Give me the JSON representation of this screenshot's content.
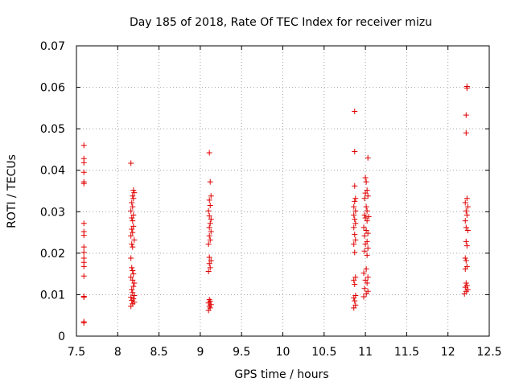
{
  "chart_data": {
    "type": "scatter",
    "title": "Day 185 of 2018, Rate Of TEC Index for receiver mizu",
    "xlabel": "GPS time / hours",
    "ylabel": "ROTI / TECUs",
    "xlim": [
      7.5,
      12.5
    ],
    "ylim": [
      0,
      0.07
    ],
    "x_ticks": [
      "7.5",
      "8",
      "8.5",
      "9",
      "9.5",
      "10",
      "10.5",
      "11",
      "11.5",
      "12",
      "12.5"
    ],
    "y_ticks": [
      "0",
      "0.01",
      "0.02",
      "0.03",
      "0.04",
      "0.05",
      "0.06",
      "0.07"
    ],
    "grid": true,
    "marker": "+",
    "color": "#e00000",
    "series": [
      {
        "name": "ROTI",
        "points": [
          [
            7.59,
            0.0032
          ],
          [
            7.59,
            0.0035
          ],
          [
            7.59,
            0.0094
          ],
          [
            7.59,
            0.0096
          ],
          [
            7.59,
            0.0145
          ],
          [
            7.59,
            0.0168
          ],
          [
            7.59,
            0.0178
          ],
          [
            7.59,
            0.0188
          ],
          [
            7.59,
            0.0202
          ],
          [
            7.59,
            0.0215
          ],
          [
            7.59,
            0.0243
          ],
          [
            7.59,
            0.0252
          ],
          [
            7.59,
            0.0272
          ],
          [
            7.59,
            0.0368
          ],
          [
            7.59,
            0.0372
          ],
          [
            7.59,
            0.0395
          ],
          [
            7.59,
            0.0418
          ],
          [
            7.59,
            0.0428
          ],
          [
            7.59,
            0.046
          ],
          [
            8.16,
            0.0072
          ],
          [
            8.18,
            0.0078
          ],
          [
            8.2,
            0.0082
          ],
          [
            8.17,
            0.0086
          ],
          [
            8.19,
            0.009
          ],
          [
            8.16,
            0.0094
          ],
          [
            8.2,
            0.0098
          ],
          [
            8.18,
            0.0105
          ],
          [
            8.17,
            0.0112
          ],
          [
            8.19,
            0.012
          ],
          [
            8.2,
            0.0128
          ],
          [
            8.18,
            0.0135
          ],
          [
            8.16,
            0.0142
          ],
          [
            8.19,
            0.015
          ],
          [
            8.18,
            0.0158
          ],
          [
            8.17,
            0.0165
          ],
          [
            8.16,
            0.0188
          ],
          [
            8.18,
            0.0215
          ],
          [
            8.17,
            0.0222
          ],
          [
            8.2,
            0.0232
          ],
          [
            8.16,
            0.0242
          ],
          [
            8.18,
            0.025
          ],
          [
            8.17,
            0.0258
          ],
          [
            8.19,
            0.0265
          ],
          [
            8.18,
            0.0278
          ],
          [
            8.17,
            0.0285
          ],
          [
            8.19,
            0.0292
          ],
          [
            8.16,
            0.0302
          ],
          [
            8.18,
            0.0312
          ],
          [
            8.17,
            0.0322
          ],
          [
            8.19,
            0.0332
          ],
          [
            8.18,
            0.0338
          ],
          [
            8.2,
            0.0346
          ],
          [
            8.19,
            0.0352
          ],
          [
            8.16,
            0.0417
          ],
          [
            9.1,
            0.0062
          ],
          [
            9.12,
            0.0068
          ],
          [
            9.11,
            0.0072
          ],
          [
            9.13,
            0.0076
          ],
          [
            9.1,
            0.008
          ],
          [
            9.12,
            0.0084
          ],
          [
            9.11,
            0.0088
          ],
          [
            9.1,
            0.0156
          ],
          [
            9.12,
            0.0165
          ],
          [
            9.11,
            0.0175
          ],
          [
            9.13,
            0.0182
          ],
          [
            9.11,
            0.019
          ],
          [
            9.1,
            0.0222
          ],
          [
            9.12,
            0.0232
          ],
          [
            9.11,
            0.0242
          ],
          [
            9.13,
            0.0252
          ],
          [
            9.11,
            0.0262
          ],
          [
            9.12,
            0.0272
          ],
          [
            9.13,
            0.0282
          ],
          [
            9.11,
            0.029
          ],
          [
            9.1,
            0.0302
          ],
          [
            9.12,
            0.0315
          ],
          [
            9.11,
            0.0328
          ],
          [
            9.13,
            0.0338
          ],
          [
            9.12,
            0.0372
          ],
          [
            9.11,
            0.0442
          ],
          [
            10.86,
            0.0068
          ],
          [
            10.88,
            0.0075
          ],
          [
            10.87,
            0.0085
          ],
          [
            10.86,
            0.0092
          ],
          [
            10.88,
            0.0098
          ],
          [
            10.87,
            0.0125
          ],
          [
            10.86,
            0.0135
          ],
          [
            10.88,
            0.0142
          ],
          [
            10.87,
            0.0202
          ],
          [
            10.86,
            0.0222
          ],
          [
            10.88,
            0.0232
          ],
          [
            10.87,
            0.0245
          ],
          [
            10.86,
            0.0262
          ],
          [
            10.88,
            0.0272
          ],
          [
            10.87,
            0.0282
          ],
          [
            10.86,
            0.0292
          ],
          [
            10.88,
            0.0302
          ],
          [
            10.86,
            0.0312
          ],
          [
            10.87,
            0.0325
          ],
          [
            10.88,
            0.0332
          ],
          [
            10.87,
            0.0362
          ],
          [
            10.87,
            0.0445
          ],
          [
            10.87,
            0.0542
          ],
          [
            10.98,
            0.0095
          ],
          [
            11.01,
            0.0102
          ],
          [
            11.03,
            0.0108
          ],
          [
            10.99,
            0.0115
          ],
          [
            11.02,
            0.0128
          ],
          [
            11.0,
            0.0135
          ],
          [
            11.03,
            0.0142
          ],
          [
            10.98,
            0.0152
          ],
          [
            11.01,
            0.0162
          ],
          [
            11.02,
            0.0195
          ],
          [
            10.99,
            0.0205
          ],
          [
            11.03,
            0.0212
          ],
          [
            11.0,
            0.0222
          ],
          [
            11.02,
            0.0228
          ],
          [
            10.99,
            0.0242
          ],
          [
            11.03,
            0.0248
          ],
          [
            11.01,
            0.0255
          ],
          [
            10.98,
            0.0262
          ],
          [
            11.02,
            0.0278
          ],
          [
            11.0,
            0.0285
          ],
          [
            11.04,
            0.0288
          ],
          [
            10.99,
            0.0292
          ],
          [
            11.02,
            0.0302
          ],
          [
            11.01,
            0.0312
          ],
          [
            10.99,
            0.0332
          ],
          [
            11.03,
            0.0338
          ],
          [
            11.0,
            0.0345
          ],
          [
            11.02,
            0.0352
          ],
          [
            11.01,
            0.0372
          ],
          [
            11.0,
            0.0382
          ],
          [
            11.03,
            0.043
          ],
          [
            12.2,
            0.0102
          ],
          [
            12.22,
            0.0108
          ],
          [
            12.24,
            0.0112
          ],
          [
            12.21,
            0.0118
          ],
          [
            12.23,
            0.0122
          ],
          [
            12.22,
            0.0128
          ],
          [
            12.21,
            0.0162
          ],
          [
            12.23,
            0.0168
          ],
          [
            12.22,
            0.0182
          ],
          [
            12.21,
            0.0188
          ],
          [
            12.23,
            0.0218
          ],
          [
            12.22,
            0.0228
          ],
          [
            12.24,
            0.0255
          ],
          [
            12.22,
            0.0262
          ],
          [
            12.21,
            0.0278
          ],
          [
            12.23,
            0.0292
          ],
          [
            12.22,
            0.0302
          ],
          [
            12.24,
            0.0312
          ],
          [
            12.21,
            0.0322
          ],
          [
            12.23,
            0.0332
          ],
          [
            12.22,
            0.049
          ],
          [
            12.22,
            0.0533
          ],
          [
            12.23,
            0.0598
          ],
          [
            12.23,
            0.0602
          ]
        ]
      }
    ]
  }
}
